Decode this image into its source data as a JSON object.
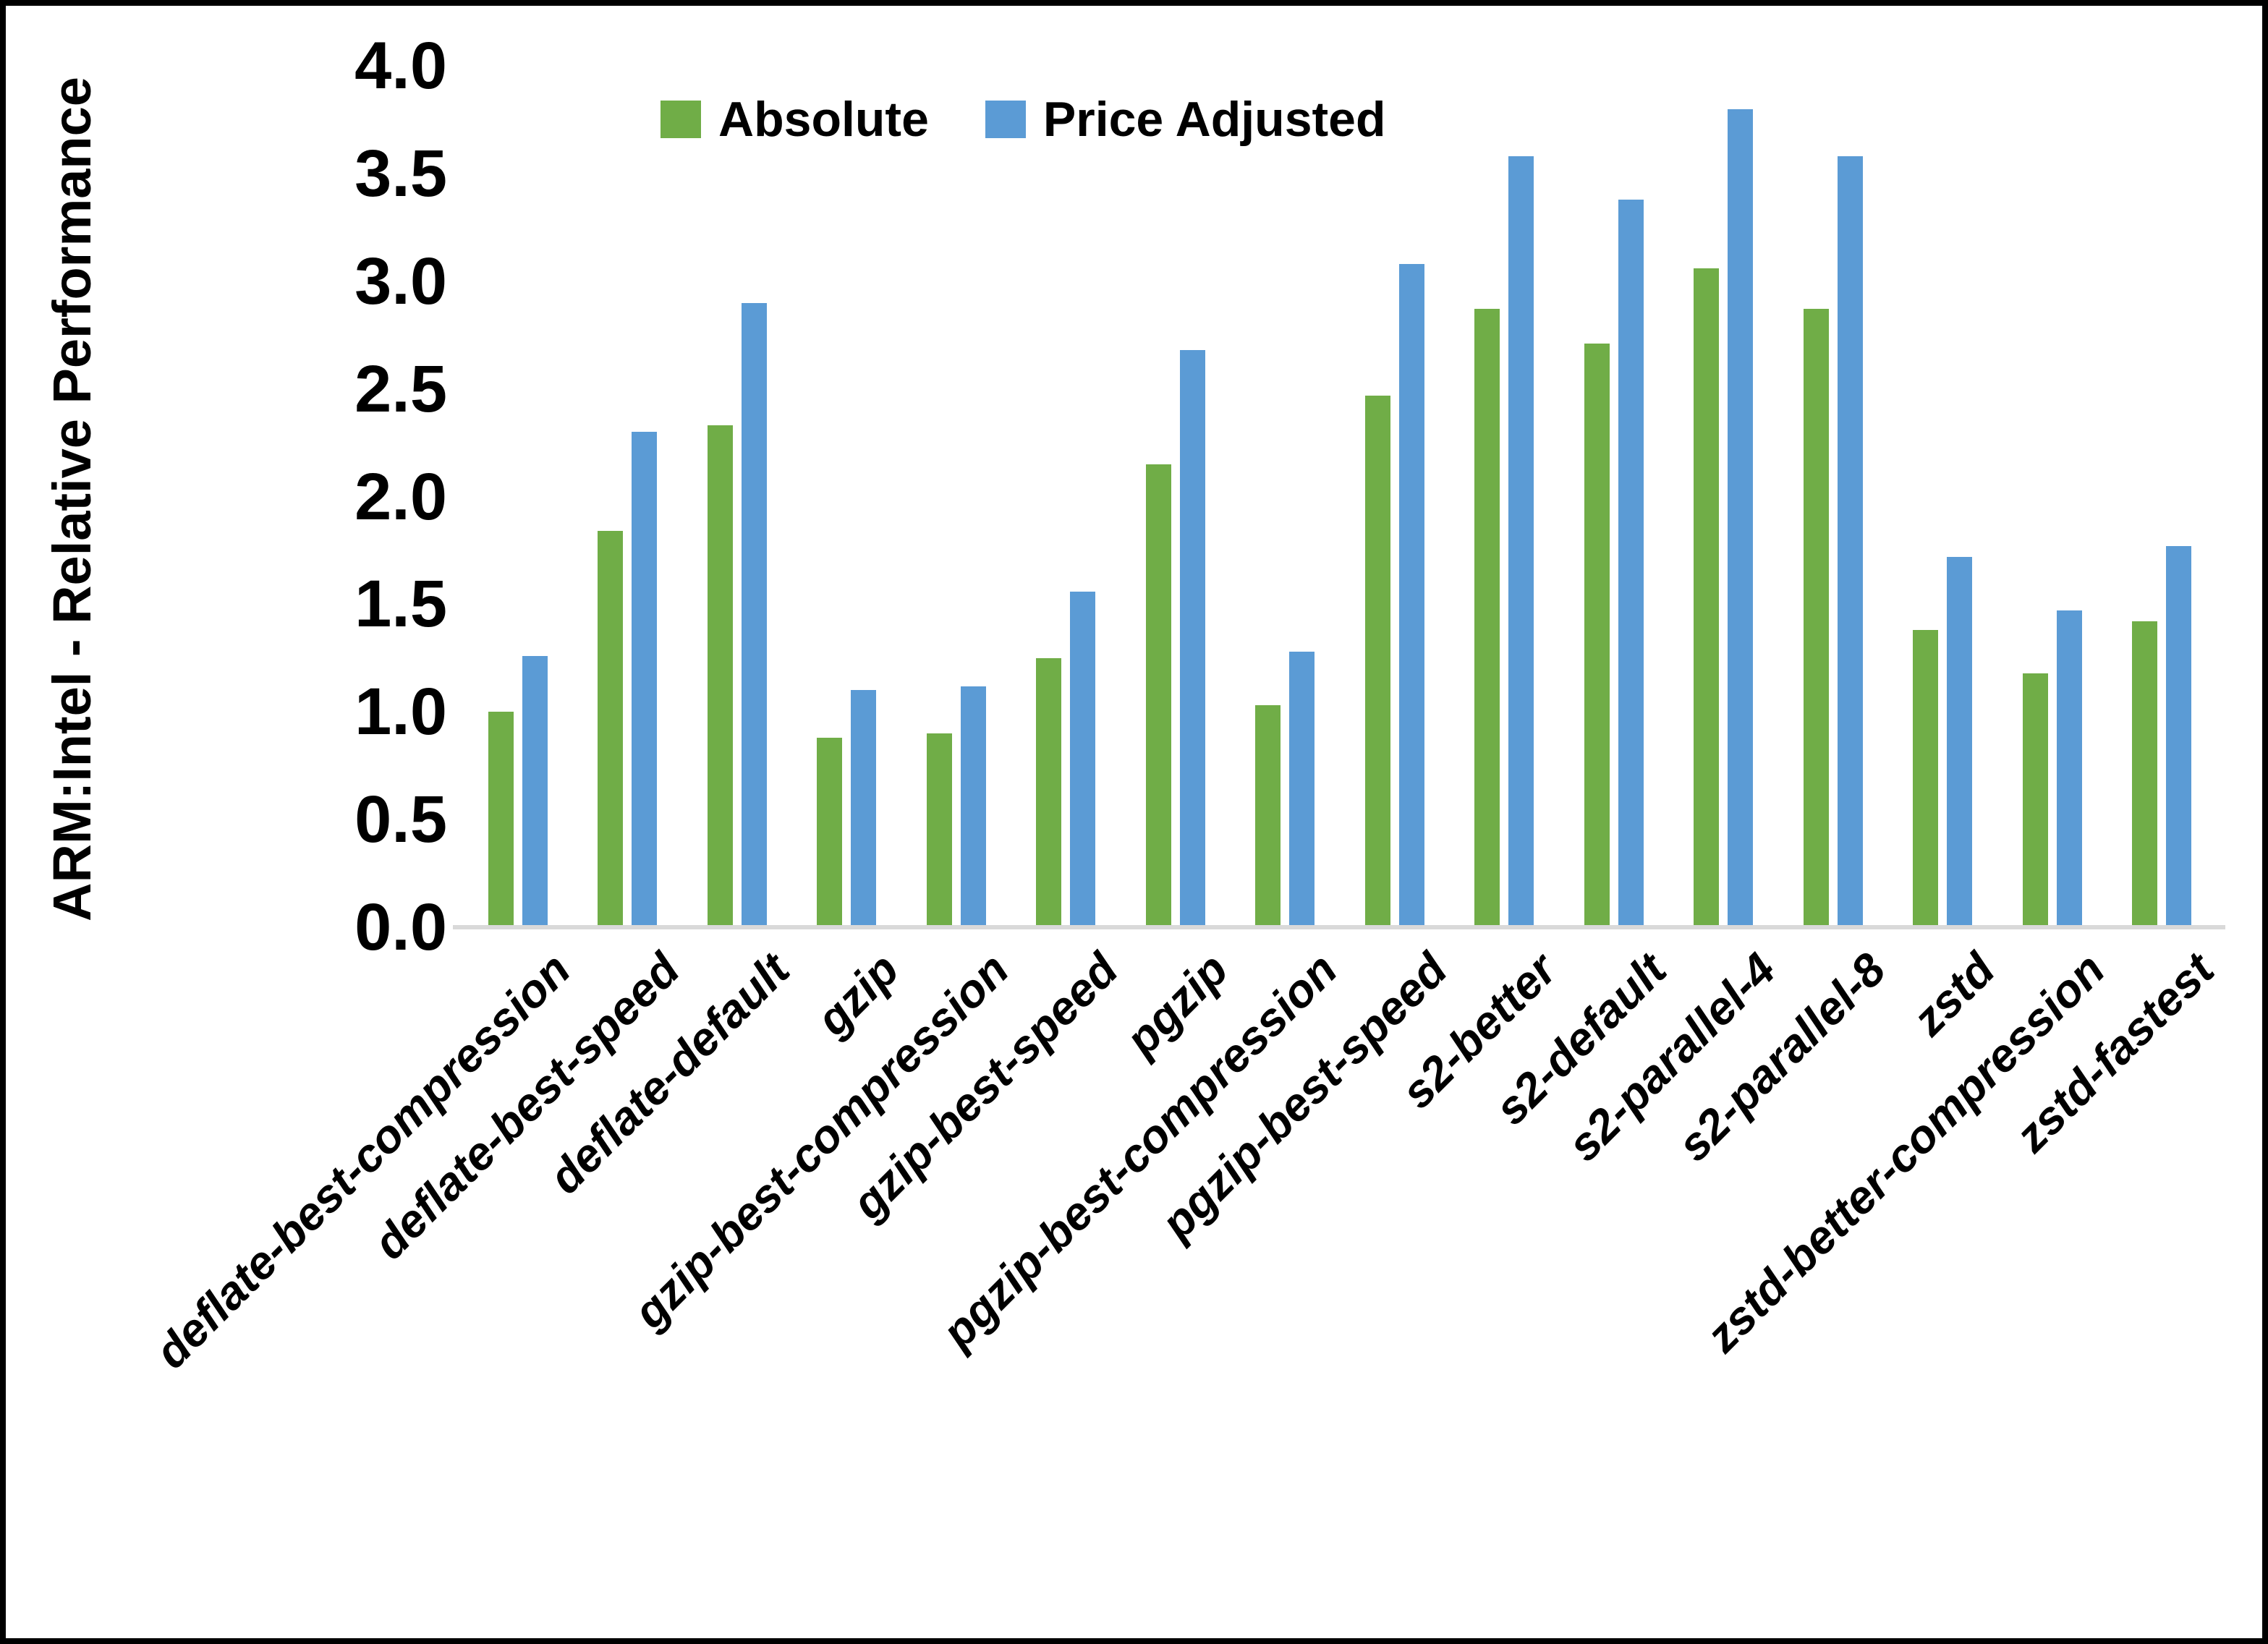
{
  "colors": {
    "absolute_series": "#70AD47",
    "price_adjusted_series": "#5B9BD5",
    "axis_line": "#D9D9D9",
    "text": "#000000",
    "background": "#FFFFFF",
    "frame": "#000000"
  },
  "chart_data": {
    "type": "bar",
    "title": "",
    "xlabel": "",
    "ylabel": "ARM:Intel - Relative Performance",
    "ylim": [
      0.0,
      4.0
    ],
    "ytick_step": 0.5,
    "yticks": [
      "0.0",
      "0.5",
      "1.0",
      "1.5",
      "2.0",
      "2.5",
      "3.0",
      "3.5",
      "4.0"
    ],
    "grid": false,
    "legend_position": "top-center",
    "categories": [
      "deflate-best-compression",
      "deflate-best-speed",
      "deflate-default",
      "gzip",
      "gzip-best-compression",
      "gzip-best-speed",
      "pgzip",
      "pgzip-best-compression",
      "pgzip-best-speed",
      "s2-better",
      "s2-default",
      "s2-parallel-4",
      "s2-parallel-8",
      "zstd",
      "zstd-better-compression",
      "zstd-fastest"
    ],
    "series": [
      {
        "name": "Absolute",
        "color": "#70AD47",
        "values": [
          1.0,
          1.84,
          2.33,
          0.88,
          0.9,
          1.25,
          2.15,
          1.03,
          2.47,
          2.87,
          2.71,
          3.06,
          2.87,
          1.38,
          1.18,
          1.42
        ]
      },
      {
        "name": "Price Adjusted",
        "color": "#5B9BD5",
        "values": [
          1.26,
          2.3,
          2.9,
          1.1,
          1.12,
          1.56,
          2.68,
          1.28,
          3.08,
          3.58,
          3.38,
          3.8,
          3.58,
          1.72,
          1.47,
          1.77
        ]
      }
    ]
  }
}
